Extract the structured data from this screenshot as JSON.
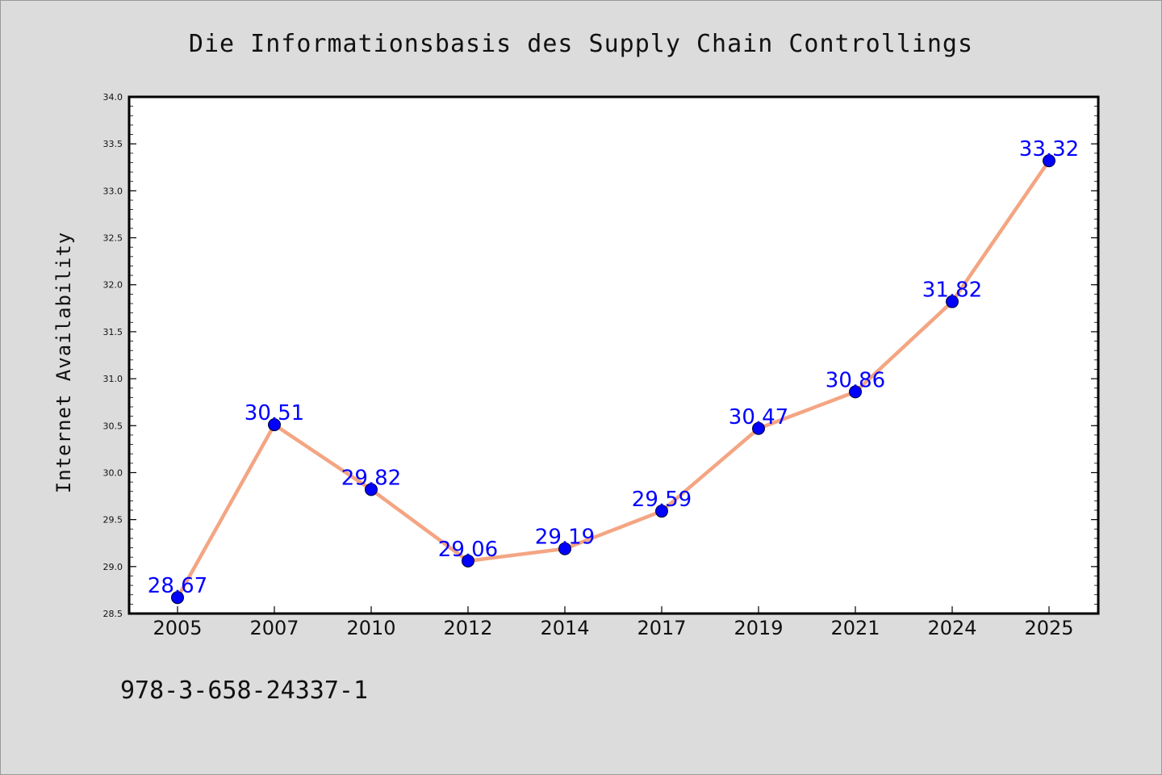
{
  "footer": {
    "isbn": "978-3-658-24337-1"
  },
  "colors": {
    "background": "#dcdcdc",
    "plot_background": "#ffffff",
    "line": "#f4a582",
    "marker": "#0000ff",
    "data_label": "#0000ff"
  },
  "chart_data": {
    "type": "line",
    "title": "Die Informationsbasis des Supply Chain Controllings",
    "xlabel": "",
    "ylabel": "Internet Availability",
    "categories": [
      "2005",
      "2007",
      "2010",
      "2012",
      "2014",
      "2017",
      "2019",
      "2021",
      "2024",
      "2025"
    ],
    "series": [
      {
        "values": [
          28.67,
          30.51,
          29.82,
          29.06,
          29.19,
          29.59,
          30.47,
          30.86,
          31.82,
          33.32
        ],
        "data_labels": [
          "28.67",
          "30.51",
          "29.82",
          "29.06",
          "29.19",
          "29.59",
          "30.47",
          "30.86",
          "31.82",
          "33.32"
        ]
      }
    ],
    "ylim": [
      28.5,
      34.0
    ],
    "yticks": [
      "28.5",
      "29.0",
      "29.5",
      "30.0",
      "30.5",
      "31.0",
      "31.5",
      "32.0",
      "32.5",
      "33.0",
      "33.5",
      "34.0"
    ],
    "ytick_minor_step": 0.1,
    "grid": false,
    "legend": "none"
  }
}
